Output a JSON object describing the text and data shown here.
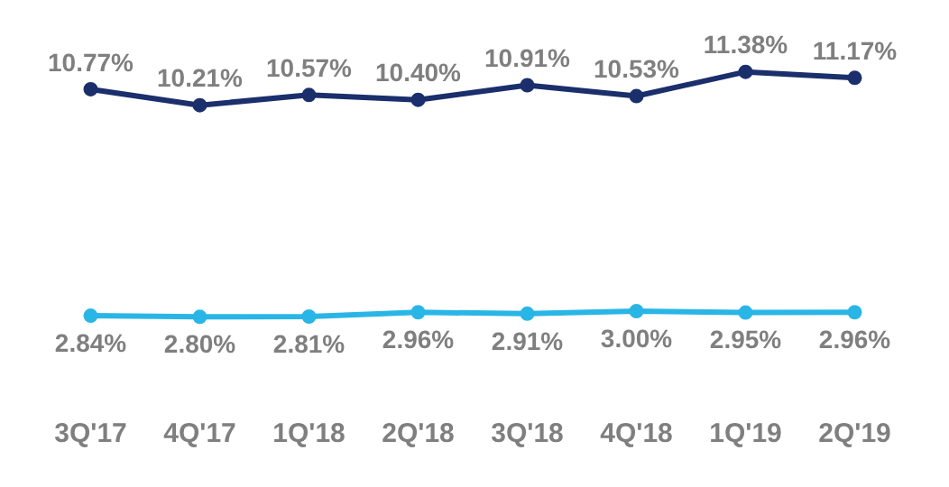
{
  "chart_data": {
    "type": "line",
    "categories": [
      "3Q'17",
      "4Q'17",
      "1Q'18",
      "2Q'18",
      "3Q'18",
      "4Q'18",
      "1Q'19",
      "2Q'19"
    ],
    "series": [
      {
        "color": "#1a2f6b",
        "values": [
          10.77,
          10.21,
          10.57,
          10.4,
          10.91,
          10.53,
          11.38,
          11.17
        ],
        "value_labels": [
          "10.77%",
          "10.21%",
          "10.57%",
          "10.40%",
          "10.91%",
          "10.53%",
          "11.38%",
          "11.17%"
        ]
      },
      {
        "color": "#29b6e6",
        "values": [
          2.84,
          2.8,
          2.81,
          2.96,
          2.91,
          3.0,
          2.95,
          2.96
        ],
        "value_labels": [
          "2.84%",
          "2.80%",
          "2.81%",
          "2.96%",
          "2.91%",
          "3.00%",
          "2.95%",
          "2.96%"
        ]
      }
    ],
    "tick_labels": "x",
    "grid": false,
    "legend": false,
    "marker": "circle",
    "line_style": "solid"
  }
}
